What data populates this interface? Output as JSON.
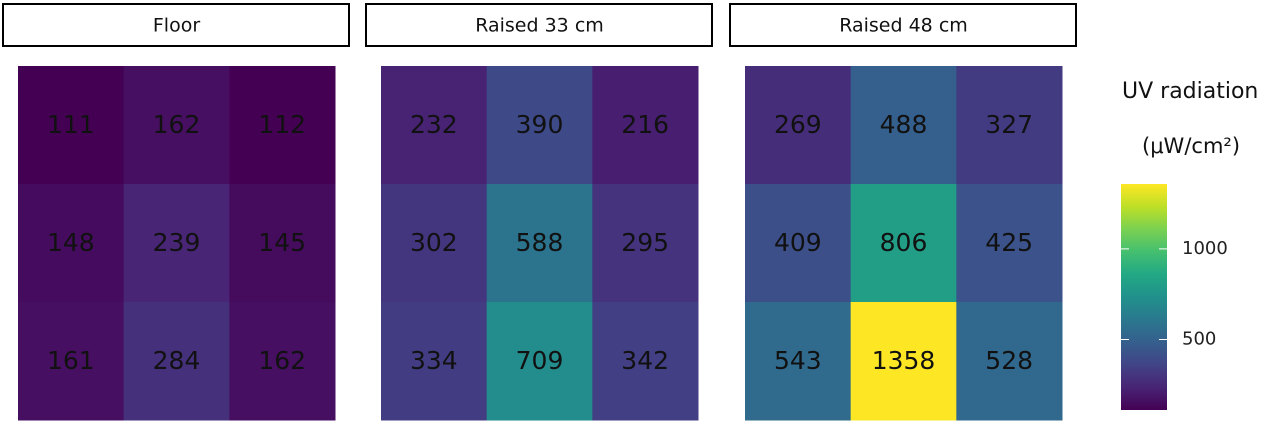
{
  "chart_data": {
    "type": "heatmap",
    "colormap": "viridis",
    "facets": [
      {
        "title": "Floor",
        "values": [
          [
            111,
            162,
            112
          ],
          [
            148,
            239,
            145
          ],
          [
            161,
            284,
            162
          ]
        ]
      },
      {
        "title": "Raised 33 cm",
        "values": [
          [
            232,
            390,
            216
          ],
          [
            302,
            588,
            295
          ],
          [
            334,
            709,
            342
          ]
        ]
      },
      {
        "title": "Raised 48 cm",
        "values": [
          [
            269,
            488,
            327
          ],
          [
            409,
            806,
            425
          ],
          [
            543,
            1358,
            528
          ]
        ]
      }
    ],
    "colorbar": {
      "title": "UV radiation",
      "unit": "(μW/cm²)",
      "ticks": [
        500,
        1000
      ]
    }
  }
}
